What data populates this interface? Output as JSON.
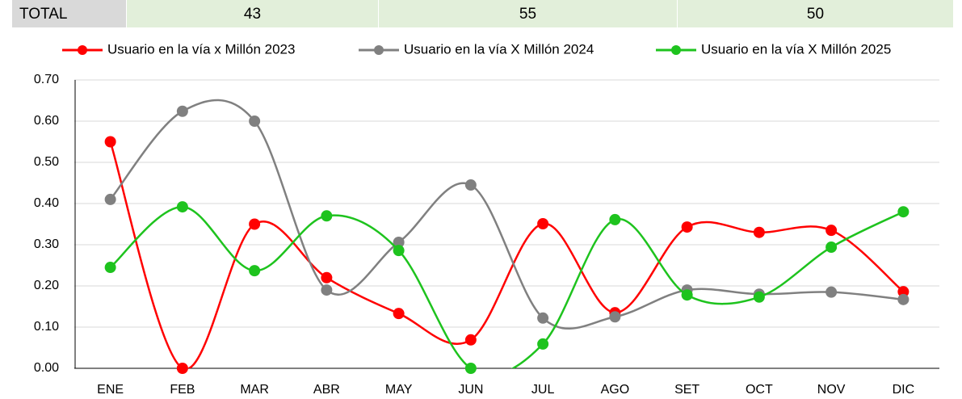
{
  "header_table": {
    "label": "TOTAL",
    "values": [
      43,
      55,
      50
    ]
  },
  "chart_data": {
    "type": "line",
    "smooth": true,
    "grid": true,
    "legend": "top",
    "categories": [
      "ENE",
      "FEB",
      "MAR",
      "ABR",
      "MAY",
      "JUN",
      "JUL",
      "AGO",
      "SET",
      "OCT",
      "NOV",
      "DIC"
    ],
    "series": [
      {
        "name": "Usuario en la vía x Millón 2023",
        "color": "#ff0000",
        "values": [
          0.55,
          0,
          0.35,
          0.22,
          0.133,
          0.069,
          0.351,
          0.135,
          0.343,
          0.33,
          0.335,
          0.186
        ]
      },
      {
        "name": "Usuario en la vía X Millón 2024",
        "color": "#808080",
        "values": [
          0.41,
          0.624,
          0.6,
          0.19,
          0.306,
          0.445,
          0.122,
          0.125,
          0.19,
          0.18,
          0.185,
          0.167
        ]
      },
      {
        "name": "Usuario en la vía X Millón 2025",
        "color": "#1ec31e",
        "values": [
          0.245,
          0.392,
          0.237,
          0.37,
          0.286,
          0,
          0.059,
          0.361,
          0.178,
          0.173,
          0.294,
          0.38
        ]
      }
    ],
    "ylim": [
      0,
      0.7
    ],
    "yticks": [
      {
        "value": 0,
        "label": "0.00"
      },
      {
        "value": 0.1,
        "label": "0.10"
      },
      {
        "value": 0.2,
        "label": "0.20"
      },
      {
        "value": 0.3,
        "label": "0.30"
      },
      {
        "value": 0.4,
        "label": "0.40"
      },
      {
        "value": 0.5,
        "label": "0.50"
      },
      {
        "value": 0.6,
        "label": "0.60"
      },
      {
        "value": 0.7,
        "label": "0.70"
      }
    ]
  }
}
